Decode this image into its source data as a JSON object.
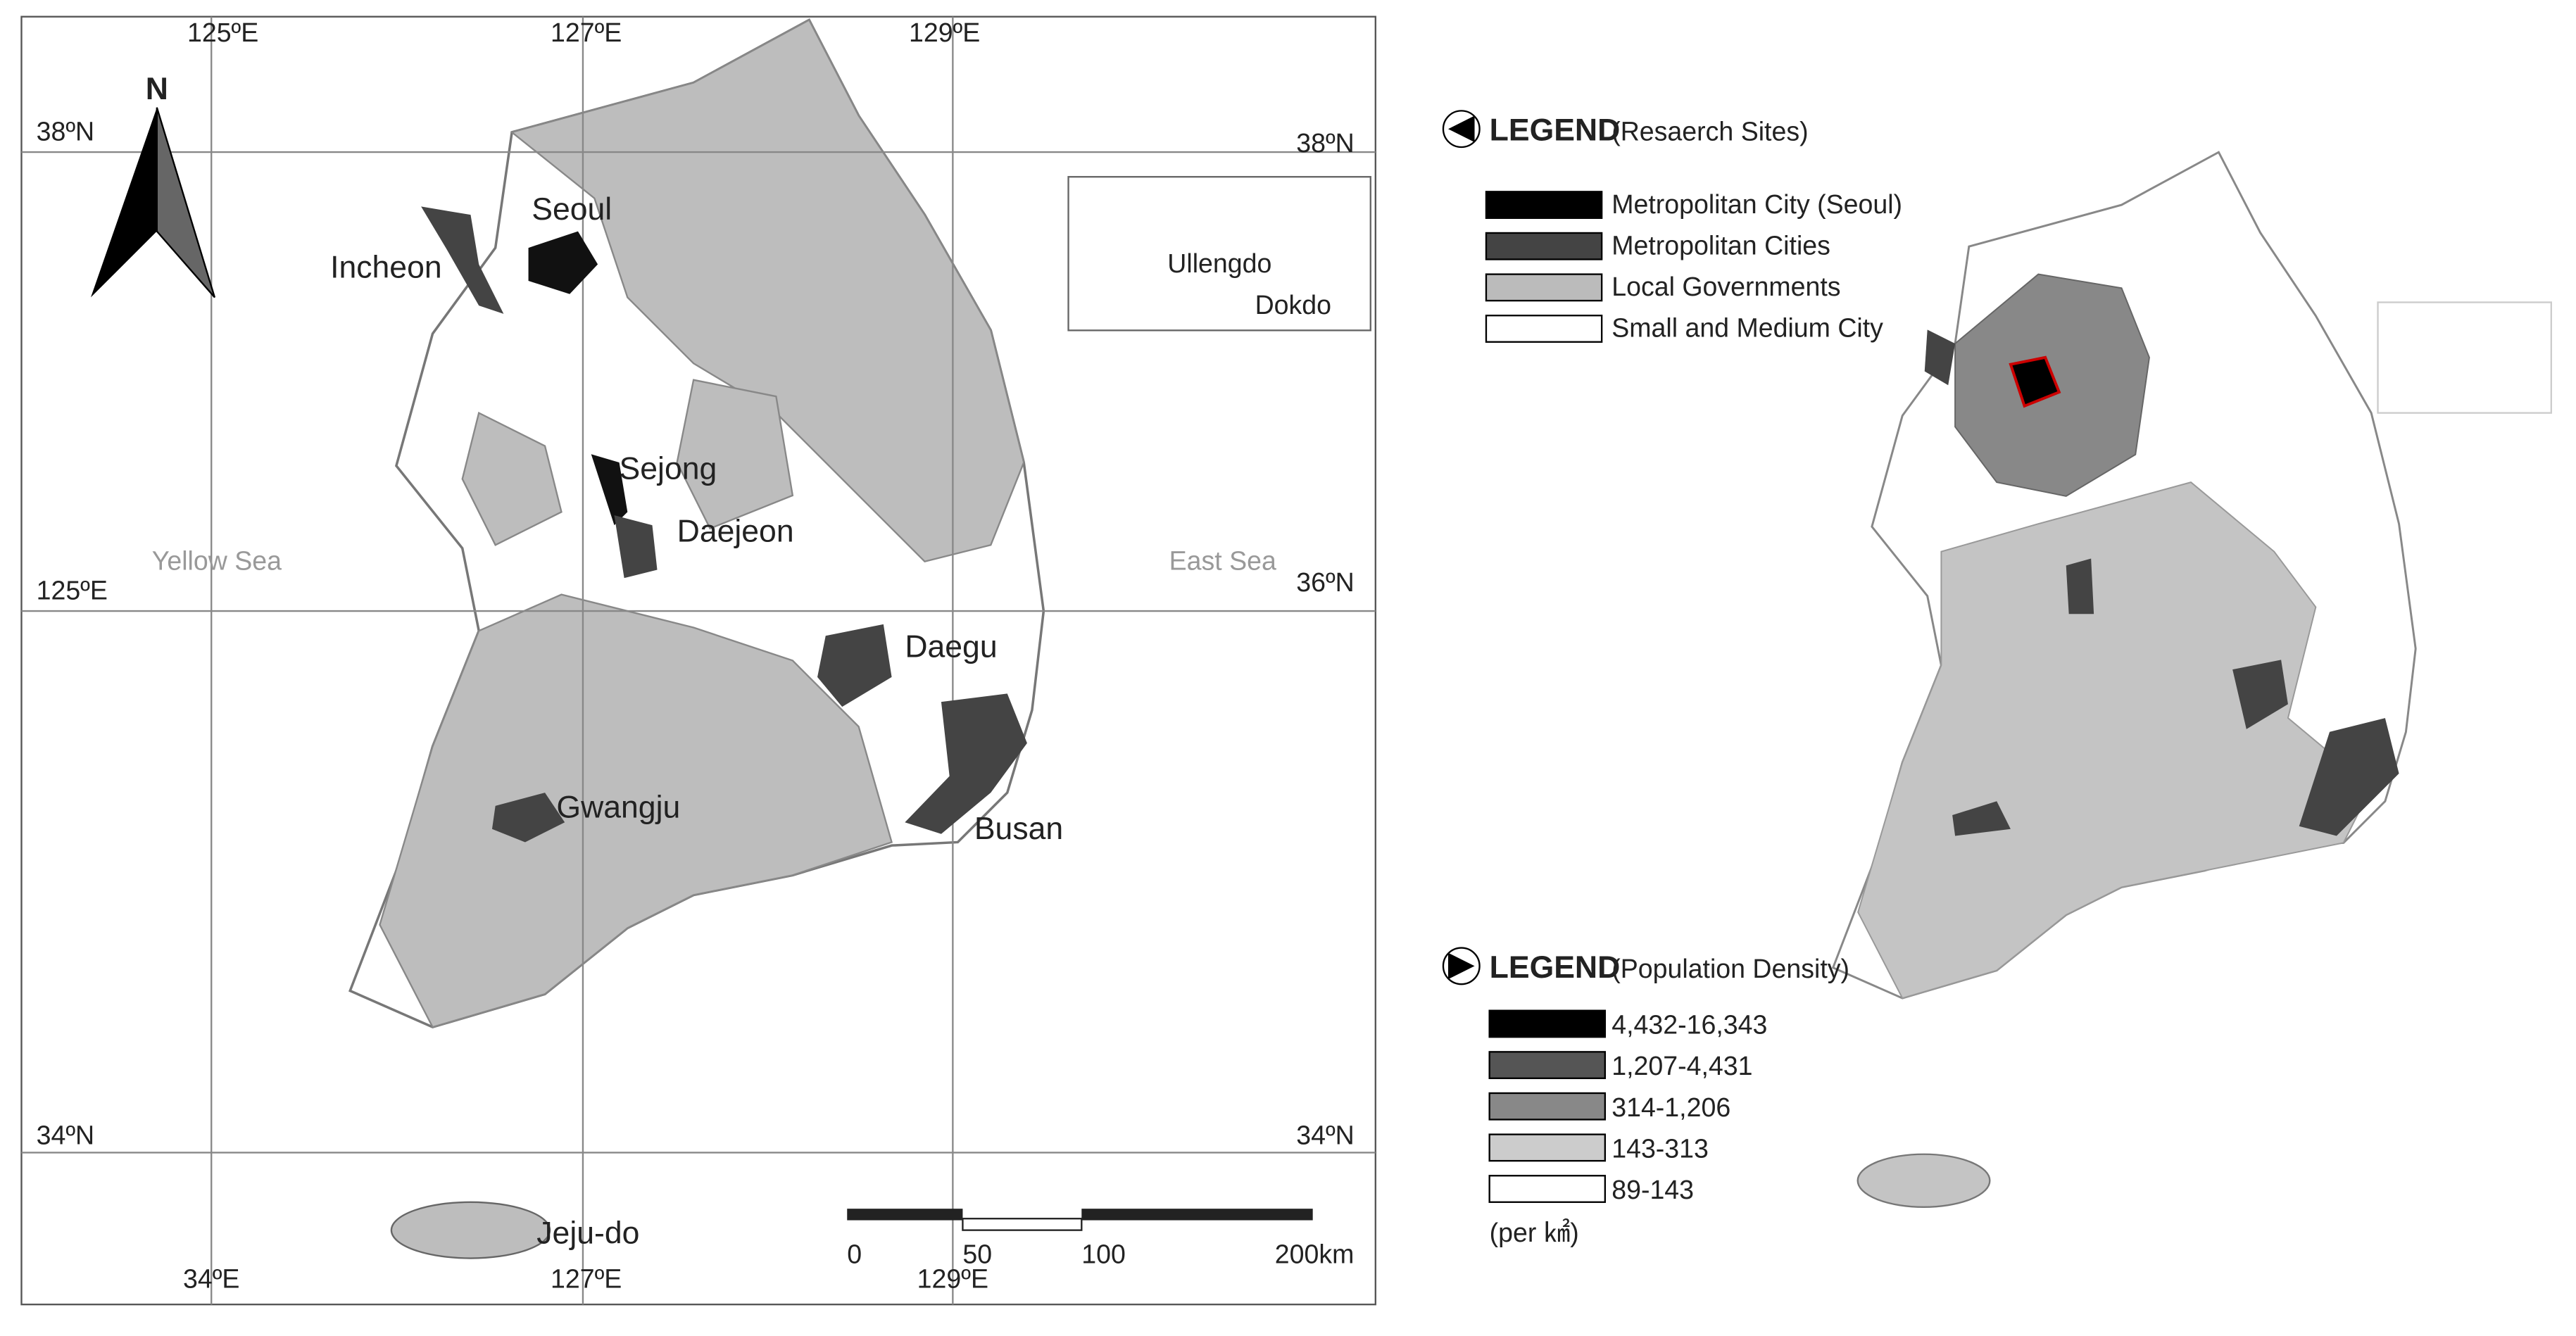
{
  "left_map": {
    "north": "N",
    "graticule": [
      "125ºE",
      "127ºE",
      "129ºE",
      "38ºN",
      "38ºN",
      "125ºE",
      "36ºN",
      "34ºN",
      "34ºN",
      "34ºE",
      "127ºE",
      "129ºE"
    ],
    "places": [
      "Seoul",
      "Incheon",
      "Sejong",
      "Daejeon",
      "Daegu",
      "Gwangju",
      "Busan",
      "Jeju-do",
      "Ullengdo",
      "Dokdo"
    ],
    "seas": [
      "Yellow Sea",
      "East Sea"
    ],
    "scale_bar": [
      "0",
      "50",
      "100",
      "200km"
    ]
  },
  "research_legend": {
    "title": "LEGEND",
    "subtitle": "(Resaerch Sites)",
    "items": [
      "Metropolitan City (Seoul)",
      "Metropolitan Cities",
      "Local Governments",
      "Small and Medium City"
    ]
  },
  "density_legend": {
    "title": "LEGEND",
    "subtitle": "(Population Density)",
    "items": [
      "4,432-16,343",
      "1,207-4,431",
      "314-1,206",
      "143-313",
      "89-143"
    ],
    "unit": "(per ㎢)"
  }
}
